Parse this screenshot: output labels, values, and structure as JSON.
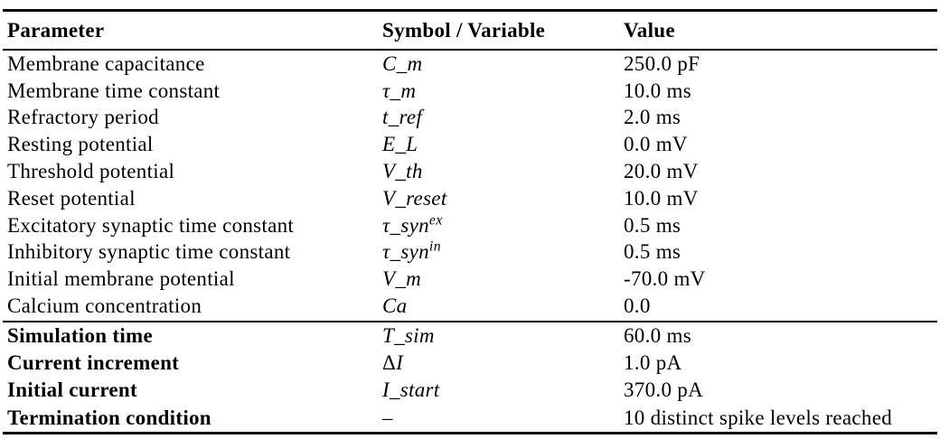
{
  "table": {
    "header": {
      "parameter": "Parameter",
      "symbol": "Symbol / Variable",
      "value": "Value"
    },
    "sections": [
      {
        "name": "neuron-model-parameters",
        "rows": [
          {
            "parameter": "Membrane capacitance",
            "symbol": {
              "base": "C_m"
            },
            "value": "250.0 pF"
          },
          {
            "parameter": "Membrane time constant",
            "symbol": {
              "base": "τ_m"
            },
            "value": "10.0 ms"
          },
          {
            "parameter": "Refractory period",
            "symbol": {
              "base": "t_ref"
            },
            "value": "2.0 ms"
          },
          {
            "parameter": "Resting potential",
            "symbol": {
              "base": "E_L"
            },
            "value": "0.0 mV"
          },
          {
            "parameter": "Threshold potential",
            "symbol": {
              "base": "V_th"
            },
            "value": "20.0 mV"
          },
          {
            "parameter": "Reset potential",
            "symbol": {
              "base": "V_reset"
            },
            "value": "10.0 mV"
          },
          {
            "parameter": "Excitatory synaptic time constant",
            "symbol": {
              "base": "τ_syn",
              "sup": "ex"
            },
            "value": "0.5 ms"
          },
          {
            "parameter": "Inhibitory synaptic time constant",
            "symbol": {
              "base": "τ_syn",
              "sup": "in"
            },
            "value": "0.5 ms"
          },
          {
            "parameter": "Initial membrane potential",
            "symbol": {
              "base": "V_m"
            },
            "value": "-70.0 mV"
          },
          {
            "parameter": "Calcium concentration",
            "symbol": {
              "base": "Ca"
            },
            "value": "0.0"
          }
        ]
      },
      {
        "name": "simulation-parameters",
        "rows": [
          {
            "parameter": "Simulation time",
            "symbol": {
              "base": "T_sim"
            },
            "value": "60.0 ms"
          },
          {
            "parameter": "Current increment",
            "symbol": {
              "upright": "Δ",
              "base": "I"
            },
            "value": "1.0 pA"
          },
          {
            "parameter": "Initial current",
            "symbol": {
              "base": "I_start"
            },
            "value": "370.0 pA"
          },
          {
            "parameter": "Termination condition",
            "symbol": {
              "upright": "–"
            },
            "value": "10 distinct spike levels reached"
          }
        ]
      }
    ]
  }
}
